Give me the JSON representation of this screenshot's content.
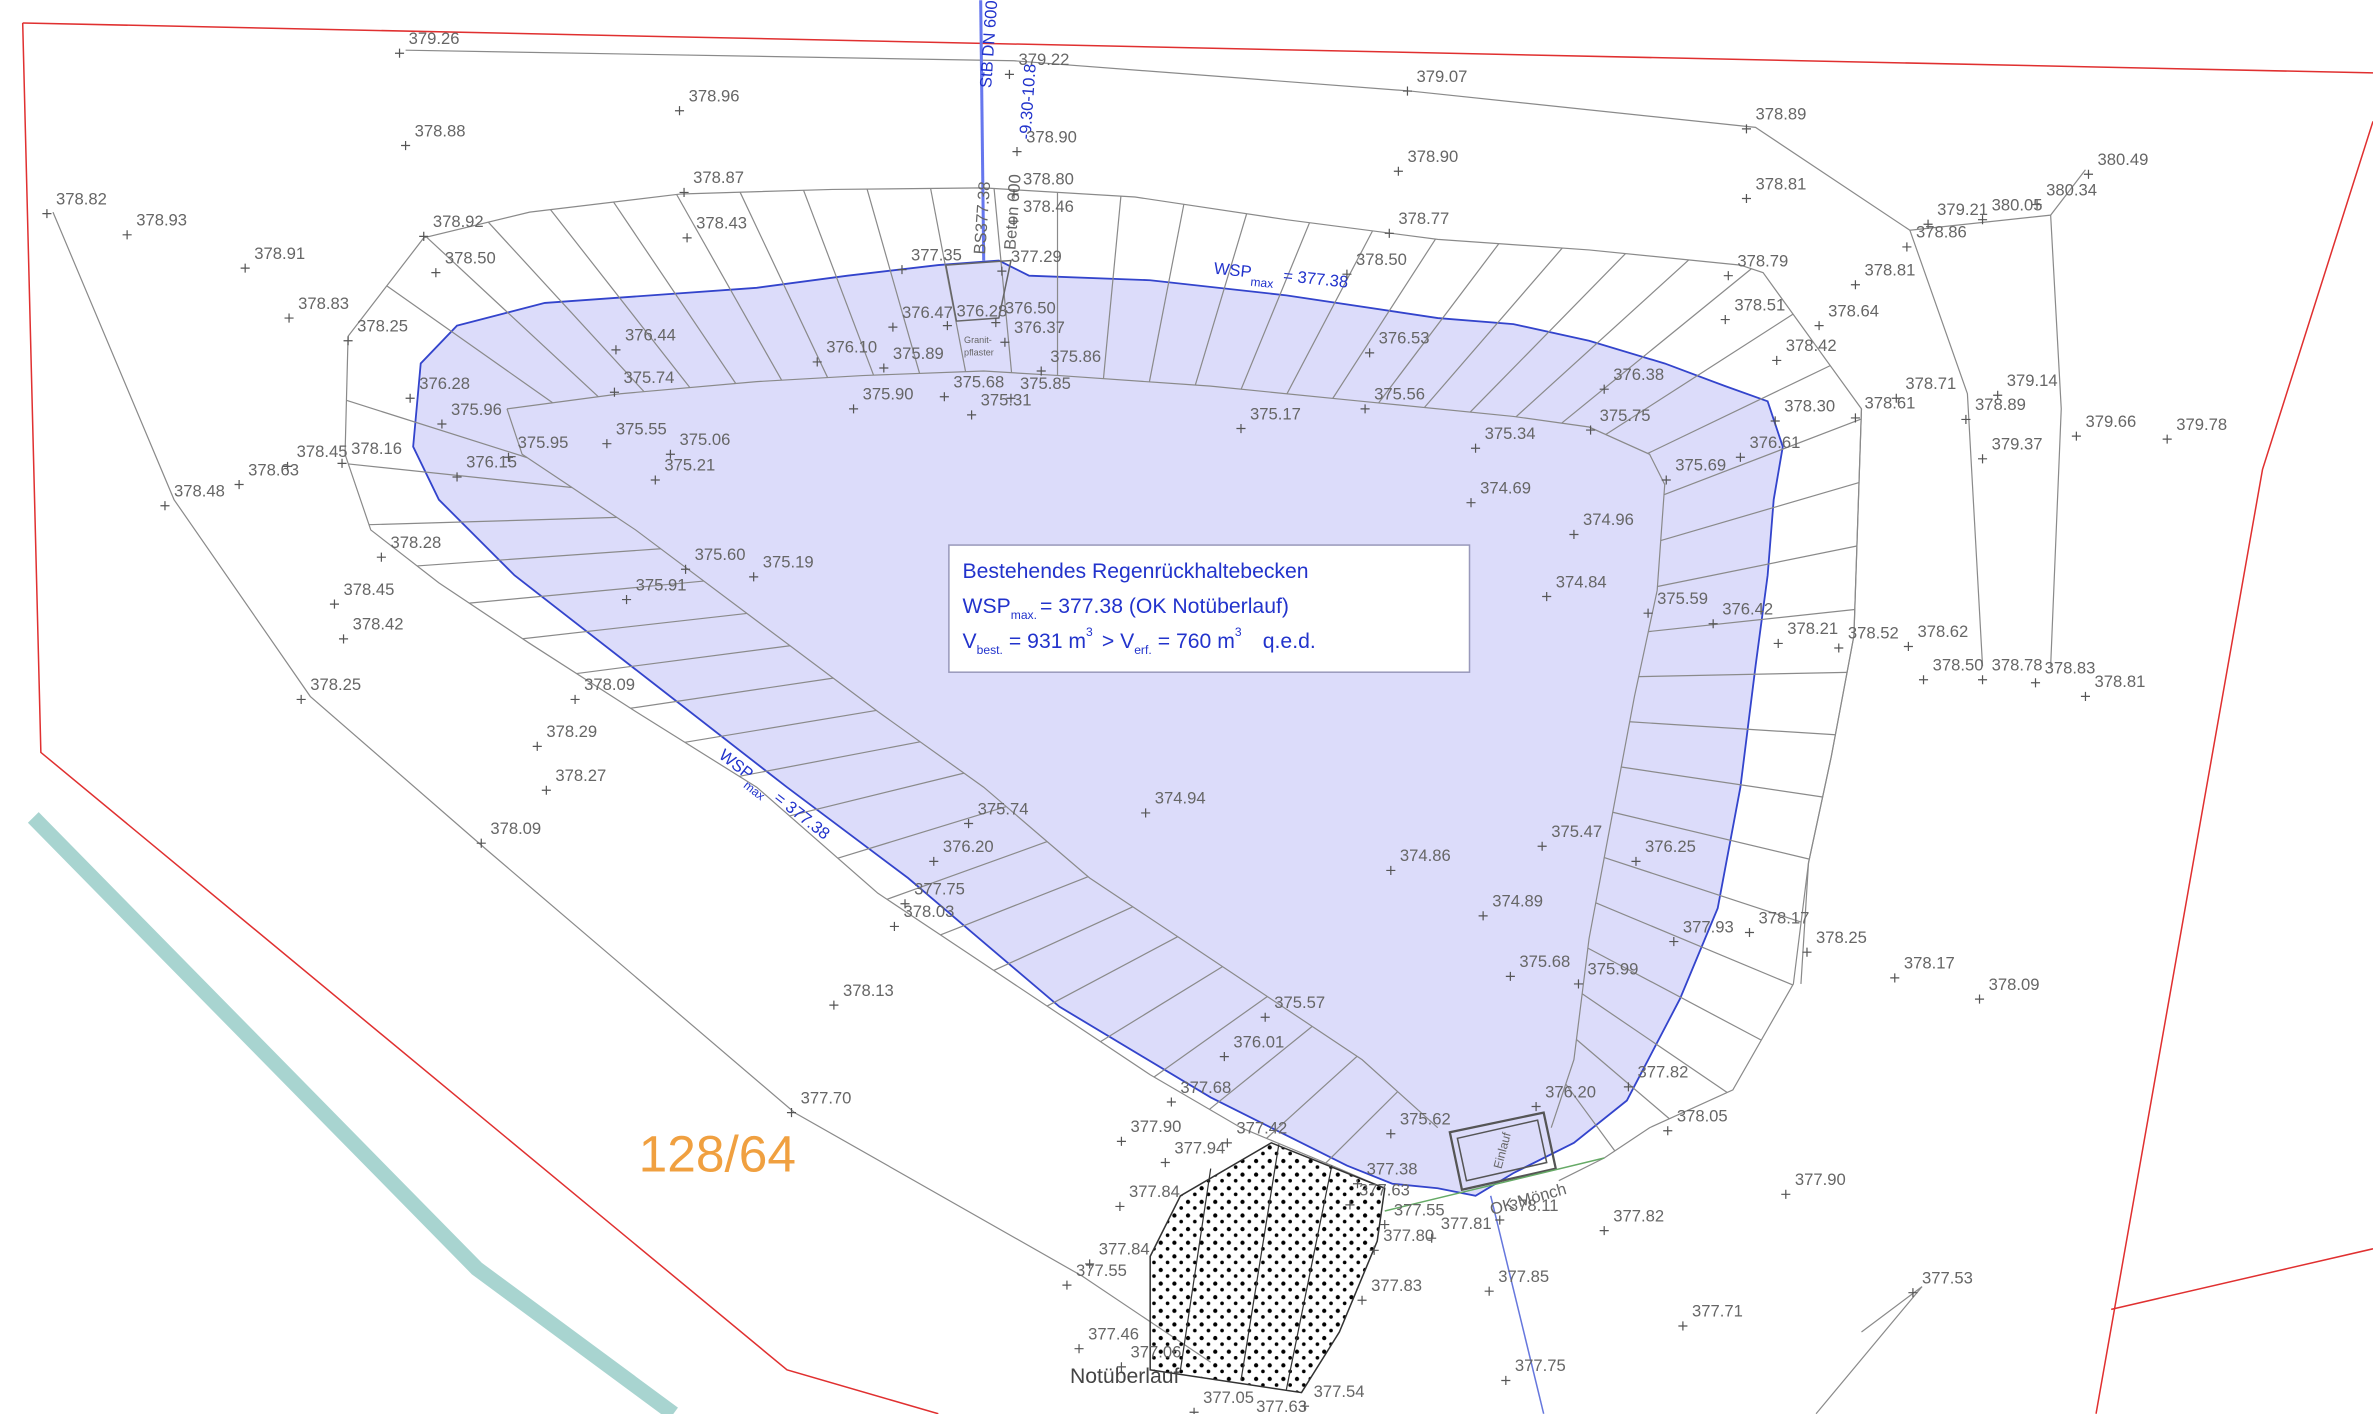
{
  "info_box": {
    "title": "Bestehendes Regenrückhaltebecken",
    "wsp": {
      "symbol": "WSP",
      "sub": "max.",
      "text": "= 377.38 (OK Notüberlauf)"
    },
    "volume": {
      "symbol1": "V",
      "sub1": "best.",
      "text1": "= 931 m",
      "sup1": "3",
      "symbol2": "> V",
      "sub2": "erf.",
      "text2": "= 760 m",
      "sup2": "3",
      "text3": "q.e.d."
    }
  },
  "water_level_labels": [
    {
      "symbol": "WSP",
      "sub": "max",
      "text": "= 377.38"
    },
    {
      "symbol": "WSP",
      "sub": "max",
      "text": "= 377.38"
    }
  ],
  "pipe": {
    "name": "StB DN 600",
    "invert": "-9.30-10.8",
    "material": "Beton 600",
    "manhole": "BS377.38"
  },
  "paving_label": [
    "Granit-",
    "pflaster"
  ],
  "parcel_number": "128/64",
  "overflow_label": "Notüberlauf",
  "outlet": {
    "label": "OK Mönch",
    "inlet": "Einlauf"
  },
  "spot_heights": [
    "379.26",
    "379.22",
    "378.96",
    "379.07",
    "378.89",
    "380.49",
    "378.88",
    "378.90",
    "378.90",
    "380.34",
    "378.81",
    "379.21",
    "380.05",
    "378.82",
    "378.93",
    "378.87",
    "378.80",
    "378.46",
    "378.92",
    "378.43",
    "378.77",
    "378.86",
    "378.91",
    "378.50",
    "377.35",
    "377.29",
    "378.50",
    "378.79",
    "378.81",
    "378.83",
    "378.51",
    "378.64",
    "378.25",
    "376.47",
    "376.28",
    "376.50",
    "376.37",
    "376.44",
    "376.53",
    "378.42",
    "376.10",
    "375.89",
    "375.86",
    "376.28",
    "375.74",
    "375.68",
    "375.85",
    "376.38",
    "378.71",
    "379.14",
    "375.90",
    "375.31",
    "375.56",
    "378.30",
    "378.61",
    "378.89",
    "375.96",
    "375.17",
    "375.75",
    "379.66",
    "379.78",
    "375.55",
    "375.06",
    "375.34",
    "376.61",
    "379.37",
    "378.45",
    "378.16",
    "375.95",
    "376.15",
    "375.21",
    "375.69",
    "378.63",
    "378.48",
    "374.69",
    "374.96",
    "378.28",
    "375.60",
    "375.19",
    "375.91",
    "374.84",
    "378.45",
    "375.59",
    "376.42",
    "378.42",
    "378.21",
    "378.52",
    "378.62",
    "378.50",
    "378.78",
    "378.83",
    "378.81",
    "378.25",
    "378.09",
    "378.29",
    "378.27",
    "374.94",
    "375.74",
    "376.20",
    "378.09",
    "375.47",
    "376.25",
    "374.86",
    "377.75",
    "378.03",
    "374.89",
    "377.93",
    "378.17",
    "378.25",
    "378.17",
    "375.68",
    "375.99",
    "378.09",
    "378.13",
    "375.57",
    "376.01",
    "377.82",
    "377.68",
    "377.70",
    "376.20",
    "378.05",
    "375.62",
    "377.90",
    "377.42",
    "377.94",
    "377.38",
    "377.63",
    "377.84",
    "377.90",
    "377.55",
    "378.11",
    "377.82",
    "377.81",
    "377.80",
    "377.84",
    "377.55",
    "377.83",
    "377.85",
    "377.53",
    "377.71",
    "377.46",
    "377.06",
    "377.75",
    "377.54",
    "377.05",
    "377.63"
  ]
}
